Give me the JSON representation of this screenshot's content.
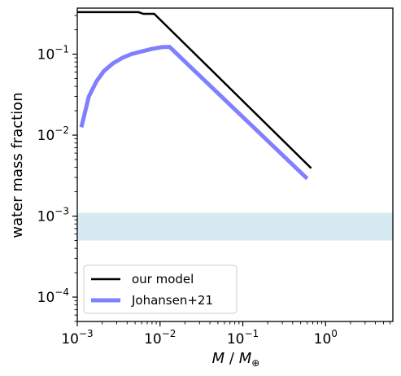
{
  "chart_data": {
    "type": "line",
    "xscale": "log",
    "yscale": "log",
    "xlim": [
      0.001,
      6.5
    ],
    "ylim": [
      5e-05,
      0.37
    ],
    "xlabel": {
      "italic_1": "M",
      "sep": " / ",
      "italic_2": "M",
      "sub": "⊕"
    },
    "ylabel": "water mass fraction",
    "xticks": [
      {
        "value": 0.001,
        "base": "10",
        "exp": "−3"
      },
      {
        "value": 0.01,
        "base": "10",
        "exp": "−2"
      },
      {
        "value": 0.1,
        "base": "10",
        "exp": "−1"
      },
      {
        "value": 1,
        "base": "10",
        "exp": "0"
      }
    ],
    "yticks": [
      {
        "value": 0.0001,
        "base": "10",
        "exp": "−4"
      },
      {
        "value": 0.001,
        "base": "10",
        "exp": "−3"
      },
      {
        "value": 0.01,
        "base": "10",
        "exp": "−2"
      },
      {
        "value": 0.1,
        "base": "10",
        "exp": "−1"
      }
    ],
    "band": {
      "ymin": 0.0005,
      "ymax": 0.0011,
      "color": "#d6eaf2"
    },
    "legend_position": "lower-left",
    "series": [
      {
        "name": "our model",
        "color": "#000000",
        "points": [
          [
            0.001,
            0.33
          ],
          [
            0.0055,
            0.33
          ],
          [
            0.006,
            0.32
          ],
          [
            0.0063,
            0.315
          ],
          [
            0.007,
            0.315
          ],
          [
            0.0085,
            0.315
          ],
          [
            0.67,
            0.0039
          ]
        ]
      },
      {
        "name": "Johansen+21",
        "color": "#8080ff",
        "points": [
          [
            0.00112,
            0.0125
          ],
          [
            0.00138,
            0.03
          ],
          [
            0.0017,
            0.046
          ],
          [
            0.0021,
            0.062
          ],
          [
            0.0027,
            0.077
          ],
          [
            0.0035,
            0.09
          ],
          [
            0.0045,
            0.1
          ],
          [
            0.006,
            0.108
          ],
          [
            0.008,
            0.116
          ],
          [
            0.0105,
            0.122
          ],
          [
            0.013,
            0.123
          ],
          [
            0.6,
            0.0029
          ]
        ]
      }
    ]
  }
}
